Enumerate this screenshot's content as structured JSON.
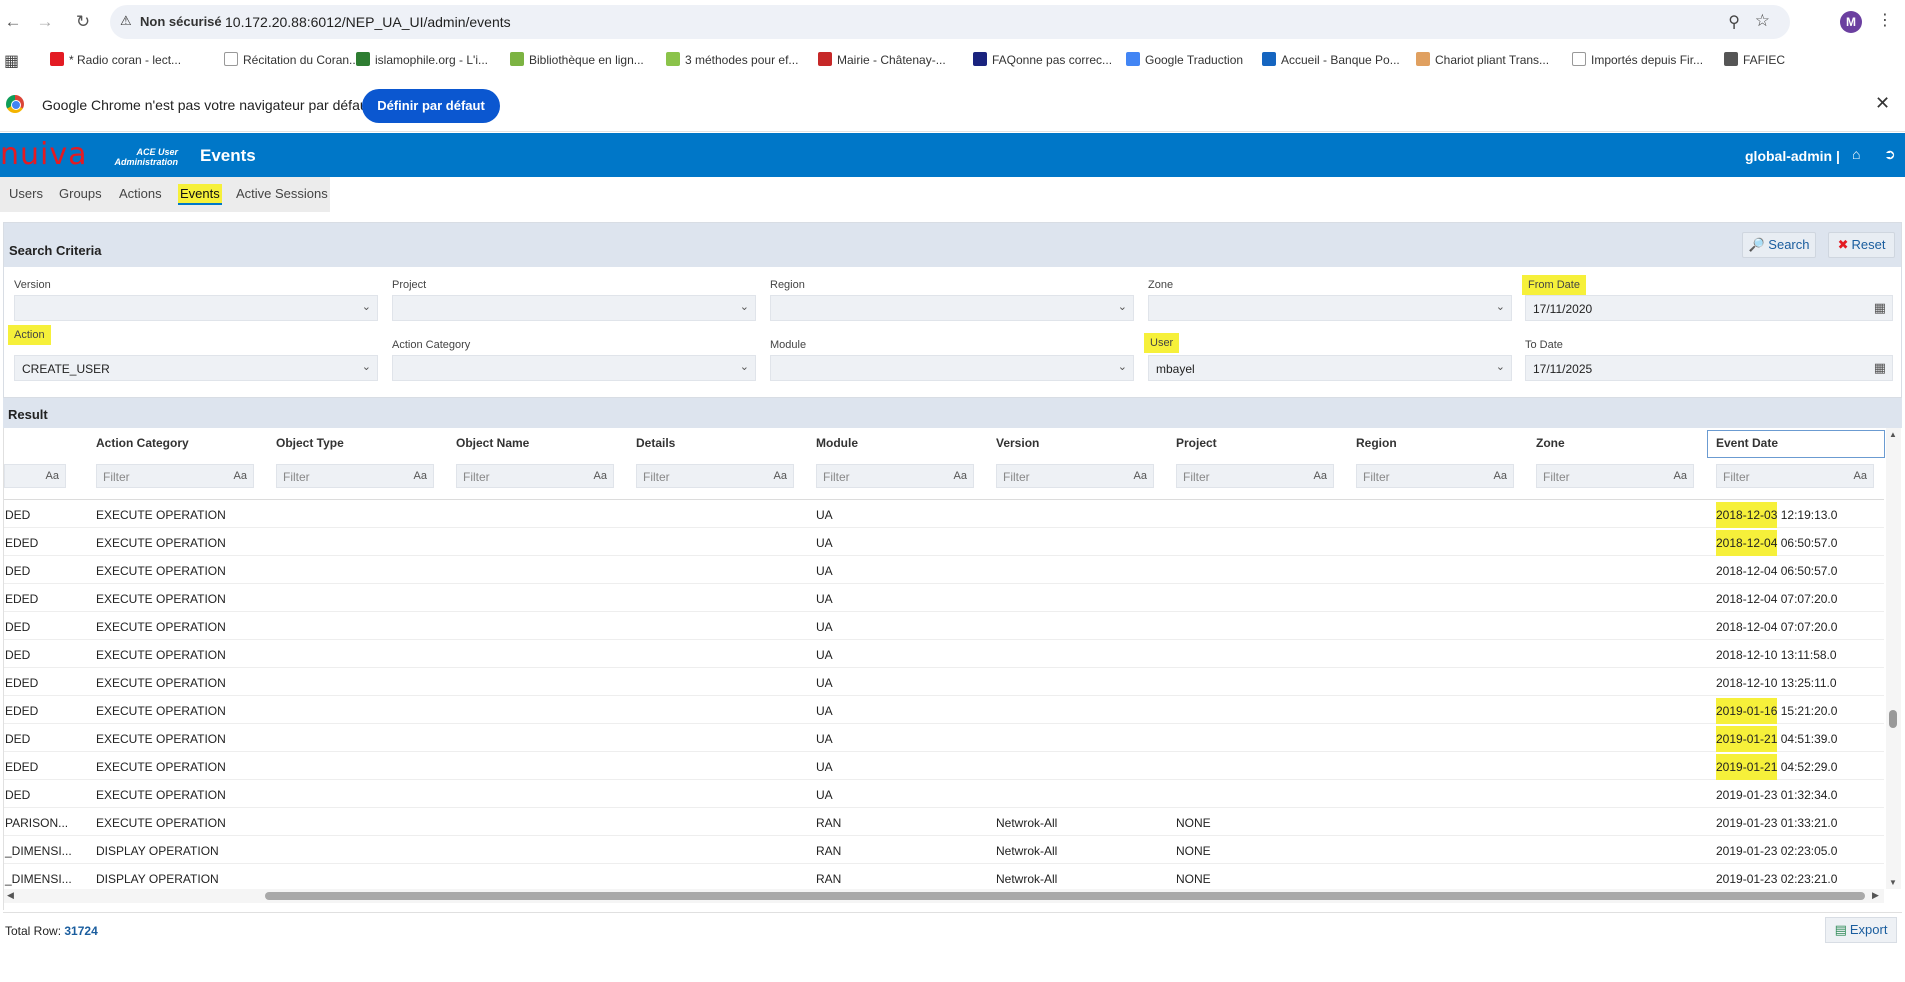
{
  "browser": {
    "insecure_label": "Non sécurisé",
    "url": "10.172.20.88:6012/NEP_UA_UI/admin/events",
    "profile_initial": "M",
    "bookmarks": [
      {
        "label": "* Radio coran - lect...",
        "color": "#e31b23"
      },
      {
        "label": "Récitation du Coran...",
        "color": "#ffffff"
      },
      {
        "label": "islamophile.org - L'i...",
        "color": "#2e7d32"
      },
      {
        "label": "Bibliothèque en lign...",
        "color": "#7cb342"
      },
      {
        "label": "3 méthodes pour ef...",
        "color": "#8bc34a"
      },
      {
        "label": "Mairie - Châtenay-...",
        "color": "#c62828"
      },
      {
        "label": "FAQonne pas correc...",
        "color": "#1a237e"
      },
      {
        "label": "Google Traduction",
        "color": "#4285f4"
      },
      {
        "label": "Accueil - Banque Po...",
        "color": "#1565c0"
      },
      {
        "label": "Chariot pliant Trans...",
        "color": "#e0a060"
      },
      {
        "label": "Importés depuis Fir...",
        "color": "#ffffff"
      },
      {
        "label": "FAFIEC",
        "color": "#555555"
      }
    ],
    "infobar_text": "Google Chrome n'est pas votre navigateur par défaut",
    "infobar_button": "Définir par défaut"
  },
  "header": {
    "logo": "nuiva",
    "logo_sub_1": "ACE User",
    "logo_sub_2": "Administration",
    "title": "Events",
    "user": "global-admin |"
  },
  "tabs": [
    "Users",
    "Groups",
    "Actions",
    "Events",
    "Active Sessions"
  ],
  "search": {
    "title": "Search Criteria",
    "search_button": "Search",
    "reset_button": "Reset",
    "fields": {
      "version": {
        "label": "Version",
        "value": ""
      },
      "project": {
        "label": "Project",
        "value": ""
      },
      "region": {
        "label": "Region",
        "value": ""
      },
      "zone": {
        "label": "Zone",
        "value": ""
      },
      "from_date": {
        "label": "From Date",
        "value": "17/11/2020"
      },
      "action": {
        "label": "Action",
        "value": "CREATE_USER"
      },
      "action_category": {
        "label": "Action Category",
        "value": ""
      },
      "module": {
        "label": "Module",
        "value": ""
      },
      "user": {
        "label": "User",
        "value": "mbayel"
      },
      "to_date": {
        "label": "To Date",
        "value": "17/11/2025"
      }
    }
  },
  "result": {
    "title": "Result",
    "columns": [
      "Action Category",
      "Object Type",
      "Object Name",
      "Details",
      "Module",
      "Version",
      "Project",
      "Region",
      "Zone",
      "Event Date"
    ],
    "filter_placeholder": "Filter",
    "filter_case": "Aa",
    "rows": [
      {
        "c0": "DED",
        "cat": "EXECUTE OPERATION",
        "module": "UA",
        "version": "",
        "project": "",
        "date_a": "2018-12-03",
        "date_b": " 12:19:13.0",
        "hl": true
      },
      {
        "c0": "EDED",
        "cat": "EXECUTE OPERATION",
        "module": "UA",
        "version": "",
        "project": "",
        "date_a": "2018-12-04",
        "date_b": " 06:50:57.0",
        "hl": true
      },
      {
        "c0": "DED",
        "cat": "EXECUTE OPERATION",
        "module": "UA",
        "version": "",
        "project": "",
        "date_a": "2018-12-04",
        "date_b": " 06:50:57.0",
        "hl": false
      },
      {
        "c0": "EDED",
        "cat": "EXECUTE OPERATION",
        "module": "UA",
        "version": "",
        "project": "",
        "date_a": "2018-12-04",
        "date_b": " 07:07:20.0",
        "hl": false
      },
      {
        "c0": "DED",
        "cat": "EXECUTE OPERATION",
        "module": "UA",
        "version": "",
        "project": "",
        "date_a": "2018-12-04",
        "date_b": " 07:07:20.0",
        "hl": false
      },
      {
        "c0": "DED",
        "cat": "EXECUTE OPERATION",
        "module": "UA",
        "version": "",
        "project": "",
        "date_a": "2018-12-10",
        "date_b": " 13:11:58.0",
        "hl": false
      },
      {
        "c0": "EDED",
        "cat": "EXECUTE OPERATION",
        "module": "UA",
        "version": "",
        "project": "",
        "date_a": "2018-12-10",
        "date_b": " 13:25:11.0",
        "hl": false
      },
      {
        "c0": "EDED",
        "cat": "EXECUTE OPERATION",
        "module": "UA",
        "version": "",
        "project": "",
        "date_a": "2019-01-16",
        "date_b": " 15:21:20.0",
        "hl": true
      },
      {
        "c0": "DED",
        "cat": "EXECUTE OPERATION",
        "module": "UA",
        "version": "",
        "project": "",
        "date_a": "2019-01-21",
        "date_b": " 04:51:39.0",
        "hl": true
      },
      {
        "c0": "EDED",
        "cat": "EXECUTE OPERATION",
        "module": "UA",
        "version": "",
        "project": "",
        "date_a": "2019-01-21",
        "date_b": " 04:52:29.0",
        "hl": true
      },
      {
        "c0": "DED",
        "cat": "EXECUTE OPERATION",
        "module": "UA",
        "version": "",
        "project": "",
        "date_a": "2019-01-23",
        "date_b": " 01:32:34.0",
        "hl": false
      },
      {
        "c0": "PARISON...",
        "cat": "EXECUTE OPERATION",
        "module": "RAN",
        "version": "Netwrok-All",
        "project": "NONE",
        "date_a": "2019-01-23",
        "date_b": " 01:33:21.0",
        "hl": false
      },
      {
        "c0": "_DIMENSI...",
        "cat": "DISPLAY OPERATION",
        "module": "RAN",
        "version": "Netwrok-All",
        "project": "NONE",
        "date_a": "2019-01-23",
        "date_b": " 02:23:05.0",
        "hl": false
      },
      {
        "c0": "_DIMENSI...",
        "cat": "DISPLAY OPERATION",
        "module": "RAN",
        "version": "Netwrok-All",
        "project": "NONE",
        "date_a": "2019-01-23",
        "date_b": " 02:23:21.0",
        "hl": false
      }
    ]
  },
  "footer": {
    "total_label": "Total Row:",
    "total_value": "31724",
    "export_button": "Export"
  }
}
